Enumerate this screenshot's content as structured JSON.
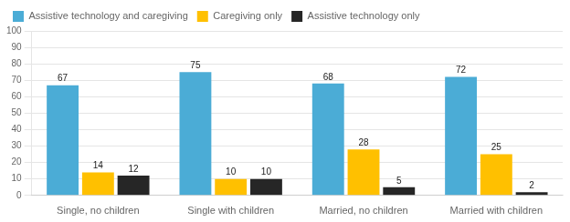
{
  "chart_data": {
    "type": "bar",
    "categories": [
      "Single, no children",
      "Single with children",
      "Married, no children",
      "Married with children"
    ],
    "series": [
      {
        "name": "Assistive technology and caregiving",
        "color": "#4BACD6",
        "values": [
          67,
          75,
          68,
          72
        ]
      },
      {
        "name": "Caregiving only",
        "color": "#FFC000",
        "values": [
          14,
          10,
          28,
          25
        ]
      },
      {
        "name": "Assistive technology only",
        "color": "#262626",
        "values": [
          12,
          10,
          5,
          2
        ]
      }
    ],
    "ylim": [
      0,
      100
    ],
    "yticks": [
      0,
      10,
      20,
      30,
      40,
      50,
      60,
      70,
      80,
      90,
      100
    ],
    "grid": true,
    "legend": "upper left",
    "data_labels": true
  }
}
